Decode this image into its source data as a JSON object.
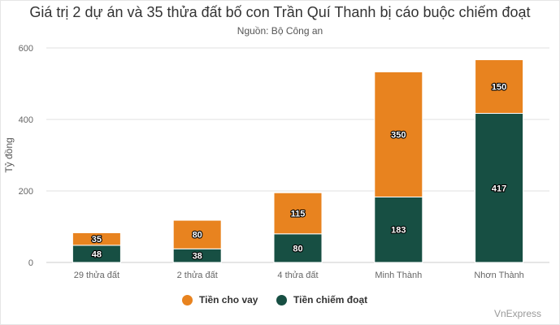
{
  "chart_data": {
    "type": "bar",
    "stacked": true,
    "title": "Giá trị 2 dự án và 35 thửa đất bố con Trần Quí Thanh bị cáo buộc chiếm đoạt",
    "subtitle": "Nguồn: Bộ Công an",
    "ylabel": "Tỷ đồng",
    "xlabel": "",
    "ylim": [
      0,
      600
    ],
    "yticks": [
      "0",
      "200",
      "400",
      "600"
    ],
    "categories": [
      "29 thửa đất",
      "2 thửa đất",
      "4 thửa đất",
      "Minh Thành",
      "Nhơn Thành"
    ],
    "series": [
      {
        "name": "Tiền chiếm đoạt",
        "values": [
          48,
          38,
          80,
          183,
          417
        ],
        "color": "#174f43"
      },
      {
        "name": "Tiền cho vay",
        "values": [
          35,
          80,
          115,
          350,
          150
        ],
        "color": "#e8831f"
      }
    ],
    "legend": [
      "Tiền cho vay",
      "Tiền chiếm đoạt"
    ],
    "legend_position": "bottom",
    "grid": true
  },
  "credit": "VnExpress"
}
